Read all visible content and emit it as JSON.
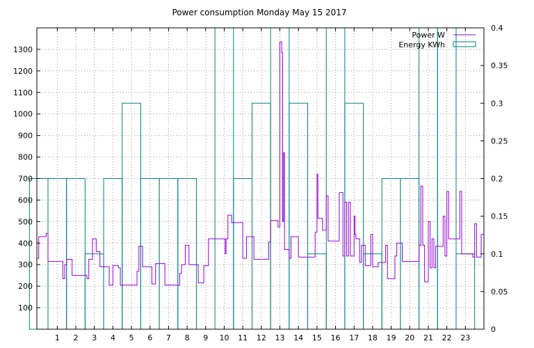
{
  "chart_data": {
    "type": "line",
    "title": "Power consumption Monday May 15 2017",
    "x": {
      "min": -0.1,
      "max": 24,
      "ticks": [
        1,
        2,
        3,
        4,
        5,
        6,
        7,
        8,
        9,
        10,
        11,
        12,
        13,
        14,
        15,
        16,
        17,
        18,
        19,
        20,
        21,
        22,
        23
      ]
    },
    "y_left": {
      "min": 0,
      "max": 1400,
      "ticks": [
        100,
        200,
        300,
        400,
        500,
        600,
        700,
        800,
        900,
        1000,
        1100,
        1200,
        1300
      ]
    },
    "y_right": {
      "min": 0,
      "max": 0.4,
      "ticks": [
        0,
        0.05,
        0.1,
        0.15,
        0.2,
        0.25,
        0.3,
        0.35,
        0.4
      ],
      "tick_labels": [
        "0",
        "0.05",
        "0.1",
        "0.15",
        "0.2",
        "0.25",
        "0.3",
        "0.35",
        "0.4"
      ]
    },
    "grid": true,
    "legend_position": "top-right",
    "series": [
      {
        "name": "Power W",
        "axis": "left",
        "color": "#9400d3",
        "style": "step",
        "points": [
          [
            -0.1,
            330
          ],
          [
            0.0,
            430
          ],
          [
            0.4,
            445
          ],
          [
            0.5,
            315
          ],
          [
            1.2,
            315
          ],
          [
            1.3,
            235
          ],
          [
            1.4,
            300
          ],
          [
            1.5,
            325
          ],
          [
            1.8,
            250
          ],
          [
            2.5,
            250
          ],
          [
            2.6,
            235
          ],
          [
            2.7,
            325
          ],
          [
            2.9,
            420
          ],
          [
            3.1,
            360
          ],
          [
            3.3,
            290
          ],
          [
            3.7,
            290
          ],
          [
            3.8,
            205
          ],
          [
            4.0,
            295
          ],
          [
            4.3,
            285
          ],
          [
            4.4,
            205
          ],
          [
            5.1,
            205
          ],
          [
            5.3,
            270
          ],
          [
            5.4,
            385
          ],
          [
            5.6,
            290
          ],
          [
            6.0,
            290
          ],
          [
            6.1,
            210
          ],
          [
            6.3,
            305
          ],
          [
            6.7,
            305
          ],
          [
            6.8,
            205
          ],
          [
            7.5,
            205
          ],
          [
            7.6,
            260
          ],
          [
            7.7,
            300
          ],
          [
            7.9,
            390
          ],
          [
            8.1,
            300
          ],
          [
            8.5,
            300
          ],
          [
            8.6,
            215
          ],
          [
            8.8,
            215
          ],
          [
            8.9,
            295
          ],
          [
            9.1,
            295
          ],
          [
            9.15,
            420
          ],
          [
            9.6,
            420
          ],
          [
            10.0,
            420
          ],
          [
            10.05,
            350
          ],
          [
            10.1,
            420
          ],
          [
            10.2,
            530
          ],
          [
            10.4,
            495
          ],
          [
            10.9,
            495
          ],
          [
            11.0,
            330
          ],
          [
            11.2,
            430
          ],
          [
            11.5,
            430
          ],
          [
            11.6,
            325
          ],
          [
            12.3,
            325
          ],
          [
            12.4,
            405
          ],
          [
            12.5,
            505
          ],
          [
            12.9,
            475
          ],
          [
            13.0,
            1335
          ],
          [
            13.1,
            1285
          ],
          [
            13.15,
            500
          ],
          [
            13.2,
            820
          ],
          [
            13.25,
            370
          ],
          [
            13.4,
            370
          ],
          [
            13.5,
            330
          ],
          [
            13.6,
            430
          ],
          [
            13.9,
            430
          ],
          [
            14.0,
            335
          ],
          [
            14.8,
            335
          ],
          [
            14.9,
            450
          ],
          [
            15.0,
            720
          ],
          [
            15.05,
            515
          ],
          [
            15.3,
            460
          ],
          [
            15.5,
            620
          ],
          [
            15.6,
            410
          ],
          [
            16.1,
            410
          ],
          [
            16.2,
            635
          ],
          [
            16.4,
            340
          ],
          [
            16.5,
            590
          ],
          [
            16.6,
            340
          ],
          [
            16.7,
            590
          ],
          [
            16.8,
            340
          ],
          [
            17.0,
            525
          ],
          [
            17.05,
            440
          ],
          [
            17.1,
            420
          ],
          [
            17.3,
            310
          ],
          [
            17.4,
            390
          ],
          [
            17.6,
            295
          ],
          [
            17.9,
            440
          ],
          [
            18.0,
            290
          ],
          [
            18.3,
            310
          ],
          [
            18.6,
            310
          ],
          [
            18.7,
            390
          ],
          [
            18.8,
            235
          ],
          [
            19.1,
            235
          ],
          [
            19.2,
            340
          ],
          [
            19.3,
            400
          ],
          [
            19.6,
            315
          ],
          [
            20.4,
            315
          ],
          [
            20.5,
            390
          ],
          [
            20.6,
            665
          ],
          [
            20.7,
            390
          ],
          [
            20.8,
            220
          ],
          [
            21.0,
            500
          ],
          [
            21.1,
            285
          ],
          [
            21.2,
            420
          ],
          [
            21.3,
            285
          ],
          [
            21.4,
            385
          ],
          [
            21.7,
            385
          ],
          [
            21.8,
            525
          ],
          [
            21.9,
            340
          ],
          [
            22.0,
            640
          ],
          [
            22.1,
            420
          ],
          [
            22.6,
            420
          ],
          [
            22.7,
            640
          ],
          [
            22.8,
            350
          ],
          [
            23.4,
            335
          ],
          [
            23.5,
            490
          ],
          [
            23.6,
            335
          ],
          [
            23.8,
            335
          ],
          [
            23.85,
            440
          ],
          [
            24.0,
            440
          ]
        ]
      },
      {
        "name": "Energy KWh",
        "axis": "right",
        "color": "#008080",
        "style": "boxes",
        "boxes": [
          [
            0,
            0.2
          ],
          [
            1,
            0.2
          ],
          [
            2,
            0.2
          ],
          [
            3,
            0.1
          ],
          [
            4,
            0.2
          ],
          [
            5,
            0.3
          ],
          [
            6,
            0.2
          ],
          [
            7,
            0.2
          ],
          [
            8,
            0.2
          ],
          [
            9,
            0
          ],
          [
            10,
            0.4
          ],
          [
            11,
            0.2
          ],
          [
            12,
            0.3
          ],
          [
            13,
            0.4
          ],
          [
            14,
            0.3
          ],
          [
            15,
            0.1
          ],
          [
            16,
            0.4
          ],
          [
            17,
            0.3
          ],
          [
            18,
            0.1
          ],
          [
            19,
            0.2
          ],
          [
            20,
            0.2
          ],
          [
            21,
            0.4
          ],
          [
            22,
            0.4
          ],
          [
            23,
            0.1
          ]
        ]
      }
    ]
  }
}
